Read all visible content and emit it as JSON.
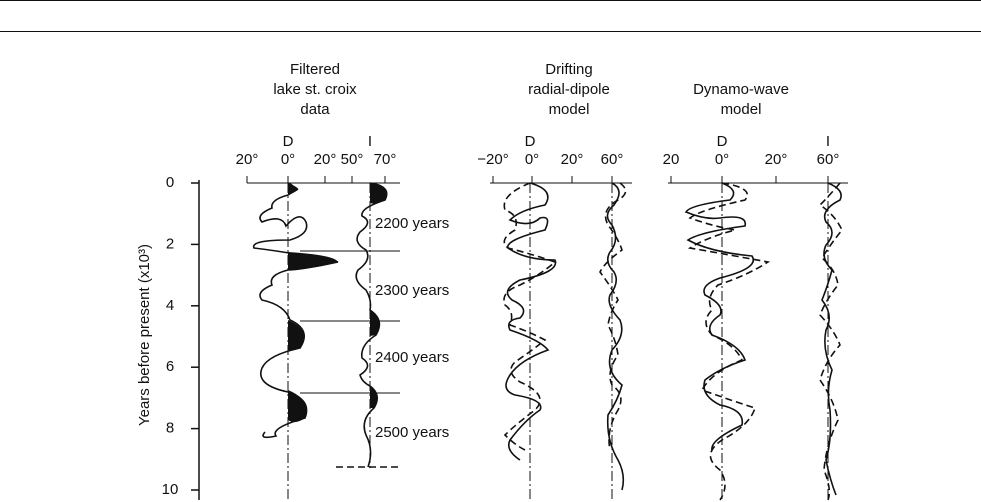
{
  "figure": {
    "y_axis_label": "Years before present (x10³)",
    "ylim": [
      0,
      10
    ],
    "yticks": [
      0,
      2,
      4,
      6,
      8,
      10
    ],
    "panels": [
      {
        "title": [
          "Filtered",
          "lake st. croix",
          "data"
        ],
        "axis_labels": [
          "D",
          "I"
        ],
        "tick_labels": [
          "20°",
          "0°",
          "20°",
          "50°",
          "70°"
        ]
      },
      {
        "title": [
          "Drifting",
          "radial-dipole",
          "model"
        ],
        "axis_labels": [
          "D"
        ],
        "tick_labels": [
          "−20°",
          "0°",
          "20°",
          "60°"
        ]
      },
      {
        "title": [
          "Dynamo-wave",
          "model"
        ],
        "axis_labels": [
          "D",
          "I"
        ],
        "tick_labels": [
          "20",
          "0°",
          "20°",
          "60°"
        ]
      }
    ],
    "annotations": [
      "2200 years",
      "2300 years",
      "2400 years",
      "2500 years"
    ]
  }
}
